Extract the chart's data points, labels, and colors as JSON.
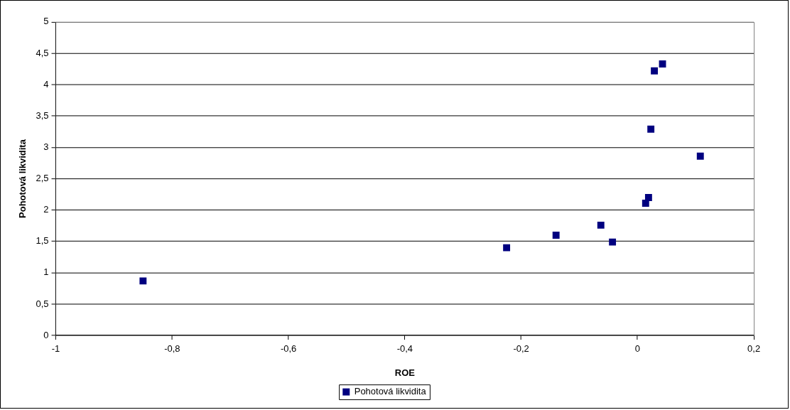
{
  "chart_data": {
    "type": "scatter",
    "xlabel": "ROE",
    "ylabel": "Pohotová likvidita",
    "xlim": [
      -1,
      0.2
    ],
    "xticks": [
      {
        "value": -1,
        "label": "-1"
      },
      {
        "value": -0.8,
        "label": "-0,8"
      },
      {
        "value": -0.6,
        "label": "-0,6"
      },
      {
        "value": -0.4,
        "label": "-0,4"
      },
      {
        "value": -0.2,
        "label": "-0,2"
      },
      {
        "value": 0,
        "label": "0"
      },
      {
        "value": 0.2,
        "label": "0,2"
      }
    ],
    "ylim": [
      0,
      5
    ],
    "yticks": [
      0,
      {
        "value": 0.5,
        "label": "0,5"
      },
      1,
      {
        "value": 1.5,
        "label": "1,5"
      },
      2,
      {
        "value": 2.5,
        "label": "2,5"
      },
      3,
      {
        "value": 3.5,
        "label": "3,5"
      },
      4,
      {
        "value": 4.5,
        "label": "4,5"
      },
      5
    ],
    "grid": "y",
    "legend": "bottom",
    "marker": "square",
    "series": [
      {
        "name": "Pohotová likvidita",
        "color": "#000080",
        "x": [
          -0.85,
          -0.225,
          -0.14,
          -0.063,
          -0.043,
          0.014,
          0.019,
          0.023,
          0.029,
          0.043,
          0.108
        ],
        "values": [
          0.87,
          1.4,
          1.6,
          1.76,
          1.49,
          2.11,
          2.2,
          3.29,
          4.22,
          4.33,
          2.86
        ]
      }
    ]
  }
}
